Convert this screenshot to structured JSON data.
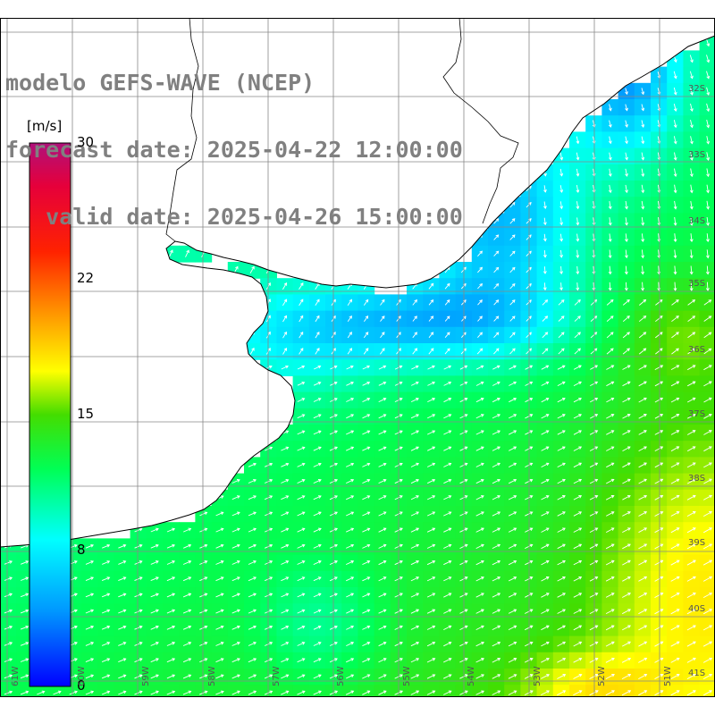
{
  "title": {
    "line1": "modelo GEFS-WAVE (NCEP)",
    "line2": "forecast date: 2025-04-22 12:00:00",
    "line3": "   valid date: 2025-04-26 15:00:00"
  },
  "colorbar": {
    "unit": "[m/s]",
    "ticks": [
      "30",
      "22",
      "15",
      "8",
      "0"
    ],
    "tick_values": [
      30,
      22,
      15,
      8,
      0
    ],
    "colors": [
      "#0000ff",
      "#00aaff",
      "#00ffff",
      "#00ff44",
      "#44dd00",
      "#ffff00",
      "#ff8800",
      "#ff2200",
      "#ee0033",
      "#cc0066",
      "#b0107a"
    ]
  },
  "grid": {
    "lat_labels": [
      "32S",
      "33S",
      "34S",
      "35S",
      "36S",
      "37S",
      "38S",
      "39S",
      "40S",
      "41S"
    ],
    "lon_labels": [
      "61W",
      "60W",
      "59W",
      "58W",
      "57W",
      "56W",
      "55W",
      "54W",
      "53W",
      "52W",
      "51W"
    ]
  },
  "colors": {
    "land": "#ffffff",
    "grid_line": "#888888",
    "coast": "#000000",
    "vector": "#ffffff",
    "title_text": "#808080"
  }
}
